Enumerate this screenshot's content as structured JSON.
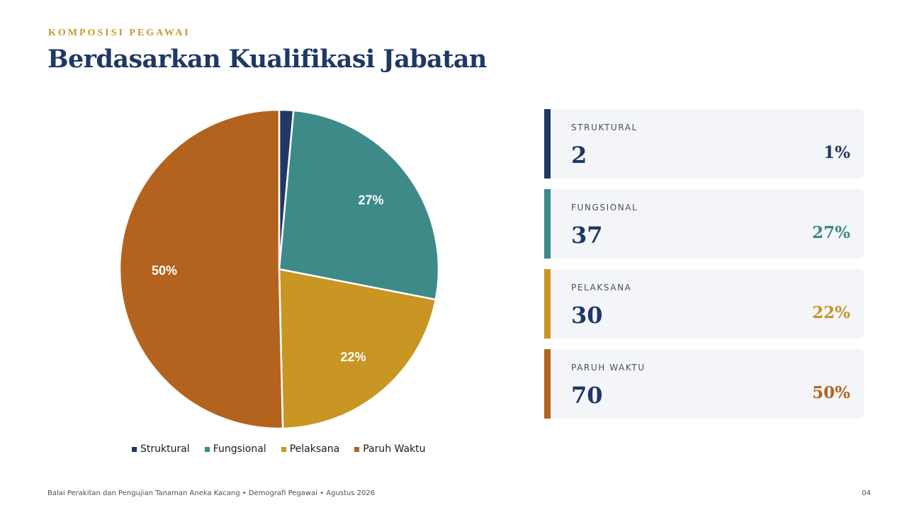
{
  "header": {
    "eyebrow": "KOMPOSISI PEGAWAI",
    "title": "Berdasarkan Kualifikasi Jabatan"
  },
  "chart_data": {
    "type": "pie",
    "title": "",
    "categories": [
      "Struktural",
      "Fungsional",
      "Pelaksana",
      "Paruh Waktu"
    ],
    "values": [
      2,
      37,
      30,
      70
    ],
    "data_labels": [
      "",
      "27%",
      "22%",
      "50%"
    ],
    "colors": [
      "#1f3864",
      "#3d8a89",
      "#c99523",
      "#b3631e"
    ],
    "start": "top",
    "direction": "clockwise",
    "legend_position": "bottom"
  },
  "legend": {
    "items": [
      {
        "label": "Struktural",
        "color": "#1f3864"
      },
      {
        "label": "Fungsional",
        "color": "#3d8a89"
      },
      {
        "label": "Pelaksana",
        "color": "#c99523"
      },
      {
        "label": "Paruh Waktu",
        "color": "#b3631e"
      }
    ]
  },
  "cards": [
    {
      "label": "STRUKTURAL",
      "count": "2",
      "percent": "1%",
      "color": "#1f3864"
    },
    {
      "label": "FUNGSIONAL",
      "count": "37",
      "percent": "27%",
      "color": "#3d8a89"
    },
    {
      "label": "PELAKSANA",
      "count": "30",
      "percent": "22%",
      "color": "#c99523"
    },
    {
      "label": "PARUH WAKTU",
      "count": "70",
      "percent": "50%",
      "color": "#b3631e"
    }
  ],
  "footer": {
    "text": "Balai Perakitan dan Pengujian Tanaman Aneka Kacang  •  Demografi Pegawai  •  Agustus 2026",
    "page": "04"
  }
}
